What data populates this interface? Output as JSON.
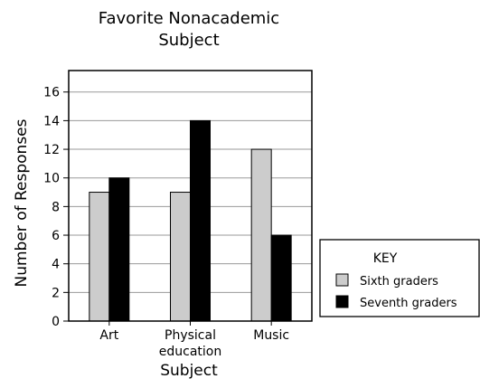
{
  "chart_data": {
    "type": "bar",
    "title": [
      "Favorite Nonacademic",
      "Subject"
    ],
    "xlabel": "Subject",
    "ylabel": "Number of Responses",
    "categories": [
      [
        "Art"
      ],
      [
        "Physical",
        "education"
      ],
      [
        "Music"
      ]
    ],
    "series": [
      {
        "name": "Sixth graders",
        "values": [
          9,
          9,
          12
        ],
        "color": "#cccccc"
      },
      {
        "name": "Seventh graders",
        "values": [
          10,
          14,
          6
        ],
        "color": "#000000"
      }
    ],
    "ylim": [
      0,
      17.5
    ],
    "yticks": [
      0,
      2,
      4,
      6,
      8,
      10,
      12,
      14,
      16
    ],
    "grid": true,
    "legend": {
      "title": "KEY",
      "position": "right"
    }
  }
}
